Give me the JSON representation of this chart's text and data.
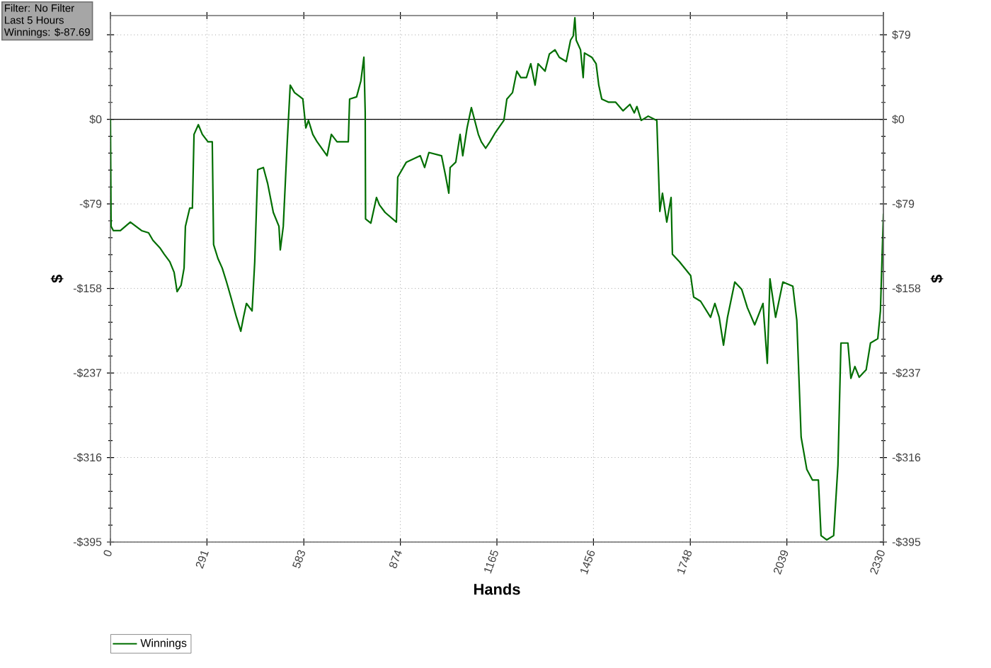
{
  "chart_data": {
    "type": "line",
    "xlabel": "Hands",
    "ylabel": "$",
    "y2label": "$",
    "annotations": [
      "Filter: No Filter",
      "Last  5 Hours",
      "Winnings: $-87.69"
    ],
    "xlim": [
      0,
      2330
    ],
    "xticks": [
      0,
      291,
      583,
      874,
      1165,
      1456,
      1748,
      2039,
      2330
    ],
    "ylim": [
      -395,
      97
    ],
    "yticks": [
      {
        "value": 79,
        "label": null
      },
      {
        "value": 0,
        "label": "$0"
      },
      {
        "value": -79,
        "label": "-$79"
      },
      {
        "value": -158,
        "label": "-$158"
      },
      {
        "value": -237,
        "label": "-$237"
      },
      {
        "value": -316,
        "label": "-$316"
      },
      {
        "value": -395,
        "label": "-$395"
      }
    ],
    "y2lim": [
      -395,
      97
    ],
    "y2ticks": [
      {
        "value": 79,
        "label": "$79"
      },
      {
        "value": 0,
        "label": "$0"
      },
      {
        "value": -79,
        "label": "-$79"
      },
      {
        "value": -158,
        "label": "-$158"
      },
      {
        "value": -237,
        "label": "-$237"
      },
      {
        "value": -316,
        "label": "-$316"
      },
      {
        "value": -395,
        "label": "-$395"
      }
    ],
    "grid": true,
    "legend": "bottom left",
    "marker": "none",
    "line_style": "solid",
    "ref_lines": [
      {
        "axis": "y",
        "value": 0,
        "color": "#000000"
      }
    ],
    "series": [
      {
        "name": "Winnings",
        "color": "#006e00",
        "x": [
          0,
          2,
          9,
          30,
          60,
          94,
          115,
          128,
          149,
          162,
          179,
          192,
          201,
          213,
          222,
          226,
          239,
          247,
          252,
          265,
          277,
          294,
          307,
          311,
          324,
          337,
          350,
          363,
          380,
          393,
          401,
          410,
          427,
          435,
          444,
          461,
          474,
          491,
          508,
          512,
          521,
          533,
          542,
          555,
          572,
          580,
          589,
          597,
          610,
          623,
          653,
          666,
          683,
          717,
          721,
          742,
          755,
          764,
          768,
          769,
          785,
          802,
          811,
          828,
          862,
          866,
          892,
          934,
          947,
          960,
          998,
          1011,
          1020,
          1024,
          1041,
          1054,
          1062,
          1075,
          1088,
          1109,
          1118,
          1131,
          1144,
          1161,
          1186,
          1195,
          1212,
          1225,
          1237,
          1254,
          1267,
          1280,
          1289,
          1310,
          1323,
          1340,
          1353,
          1374,
          1387,
          1395,
          1400,
          1404,
          1417,
          1425,
          1429,
          1451,
          1464,
          1472,
          1481,
          1502,
          1523,
          1545,
          1566,
          1579,
          1587,
          1600,
          1621,
          1647,
          1656,
          1664,
          1677,
          1690,
          1694,
          1715,
          1749,
          1758,
          1779,
          1809,
          1822,
          1835,
          1848,
          1860,
          1882,
          1903,
          1920,
          1942,
          1967,
          1980,
          1988,
          2005,
          2027,
          2057,
          2069,
          2082,
          2099,
          2116,
          2134,
          2142,
          2159,
          2180,
          2193,
          2202,
          2223,
          2232,
          2244,
          2257,
          2278,
          2291,
          2313,
          2321,
          2330
        ],
        "values": [
          0,
          -100,
          -104,
          -104,
          -96,
          -104,
          -106,
          -113,
          -120,
          -126,
          -133,
          -143,
          -161,
          -155,
          -139,
          -100,
          -83,
          -83,
          -14,
          -5,
          -14,
          -21,
          -21,
          -117,
          -130,
          -139,
          -152,
          -166,
          -185,
          -198,
          -185,
          -172,
          -179,
          -133,
          -47,
          -45,
          -60,
          -87,
          -100,
          -122,
          -100,
          -21,
          32,
          25,
          21,
          19,
          -8,
          -1,
          -14,
          -21,
          -34,
          -14,
          -21,
          -21,
          19,
          21,
          36,
          58,
          6,
          -93,
          -97,
          -73,
          -80,
          -87,
          -96,
          -54,
          -40,
          -34,
          -45,
          -31,
          -34,
          -54,
          -69,
          -45,
          -40,
          -14,
          -34,
          -8,
          11,
          -14,
          -21,
          -27,
          -21,
          -12,
          -1,
          19,
          25,
          45,
          39,
          39,
          52,
          32,
          52,
          45,
          61,
          65,
          58,
          54,
          74,
          78,
          95,
          74,
          65,
          39,
          62,
          58,
          52,
          32,
          19,
          16,
          16,
          8,
          14,
          6,
          12,
          -1,
          3,
          -1,
          -86,
          -69,
          -96,
          -73,
          -126,
          -133,
          -146,
          -166,
          -170,
          -185,
          -172,
          -185,
          -211,
          -185,
          -152,
          -159,
          -176,
          -192,
          -172,
          -228,
          -149,
          -185,
          -152,
          -156,
          -188,
          -297,
          -327,
          -337,
          -337,
          -389,
          -393,
          -389,
          -323,
          -209,
          -209,
          -242,
          -231,
          -241,
          -234,
          -209,
          -205,
          -179,
          -88
        ]
      }
    ]
  }
}
